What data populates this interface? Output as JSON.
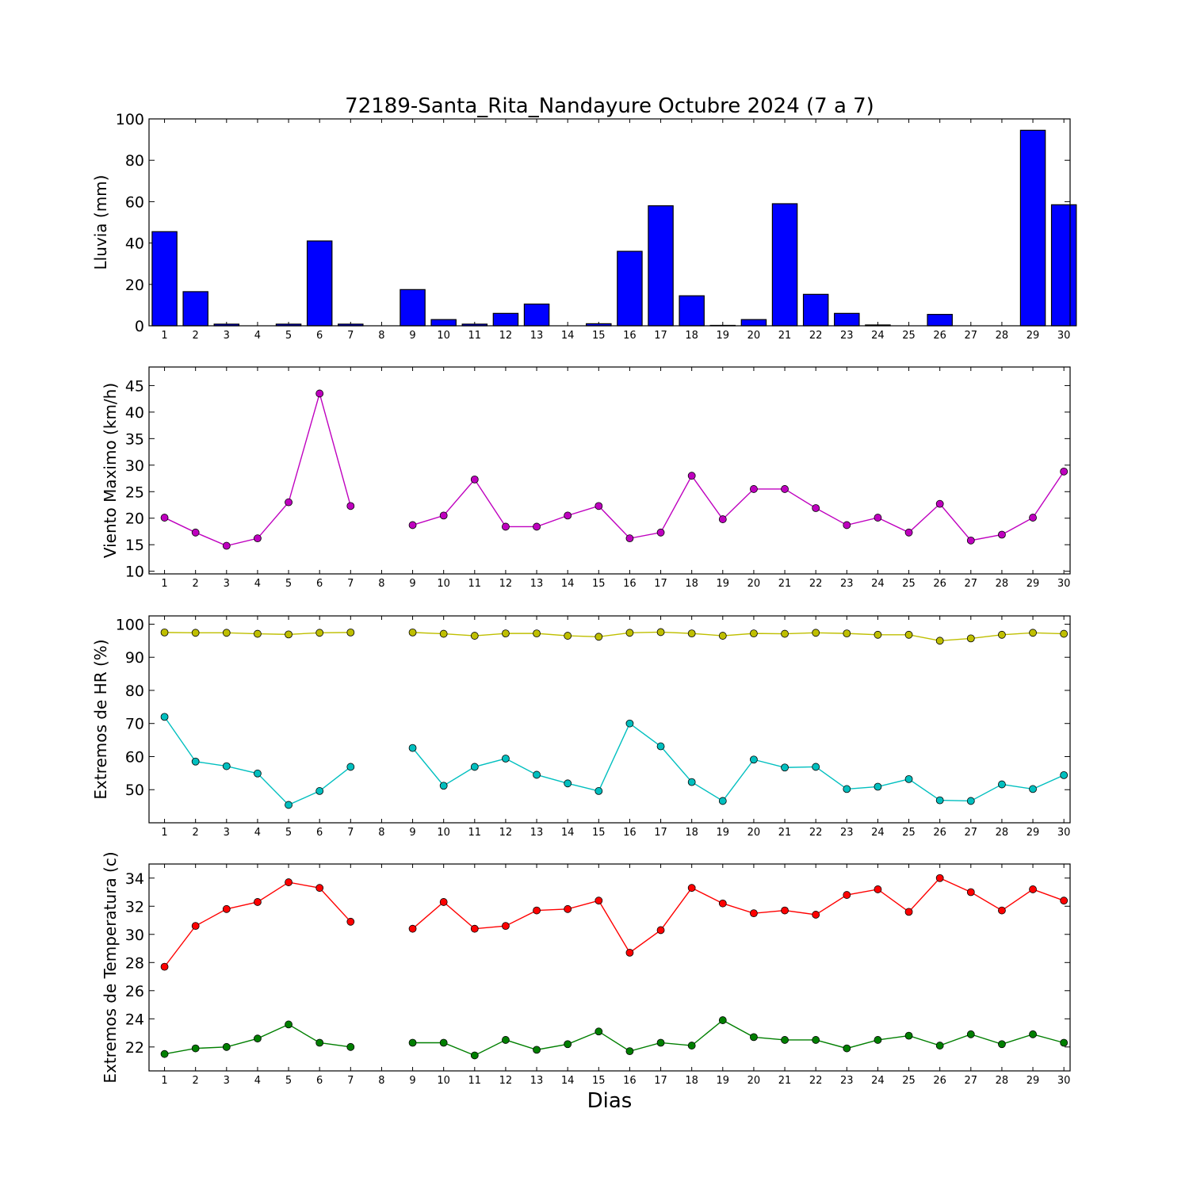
{
  "title": "72189-Santa_Rita_Nandayure Octubre 2024  (7 a 7)",
  "xlabel": "Dias",
  "colors": {
    "rain": "#0000ff",
    "wind": "#bf00bf",
    "hr_max": "#bfbf00",
    "hr_min": "#00bfbf",
    "temp_max": "#ff0000",
    "temp_min": "#007f00"
  },
  "chart_data": [
    {
      "type": "bar",
      "ylabel": "Lluvia (mm)",
      "categories": [
        "1",
        "2",
        "3",
        "4",
        "5",
        "6",
        "7",
        "8",
        "9",
        "10",
        "11",
        "12",
        "13",
        "14",
        "15",
        "16",
        "17",
        "18",
        "19",
        "20",
        "21",
        "22",
        "23",
        "24",
        "25",
        "26",
        "27",
        "28",
        "29",
        "30"
      ],
      "values": [
        45.5,
        16.5,
        0.8,
        0,
        0.8,
        41,
        0.8,
        null,
        17.5,
        3,
        0.8,
        6,
        10.5,
        0,
        1,
        36,
        58,
        14.5,
        0.2,
        3,
        59,
        15.2,
        6,
        0.4,
        0,
        5.5,
        0,
        0,
        94.5,
        58.5
      ],
      "ylim": [
        0,
        100
      ],
      "yticks": [
        0,
        20,
        40,
        60,
        80,
        100
      ]
    },
    {
      "type": "line",
      "ylabel": "Viento Maximo (km/h)",
      "categories": [
        "1",
        "2",
        "3",
        "4",
        "5",
        "6",
        "7",
        "8",
        "9",
        "10",
        "11",
        "12",
        "13",
        "14",
        "15",
        "16",
        "17",
        "18",
        "19",
        "20",
        "21",
        "22",
        "23",
        "24",
        "25",
        "26",
        "27",
        "28",
        "29",
        "30"
      ],
      "series": [
        {
          "values": [
            20.1,
            17.3,
            14.8,
            16.2,
            23.0,
            43.5,
            22.3,
            null,
            18.7,
            20.5,
            27.3,
            18.4,
            18.4,
            20.5,
            22.3,
            16.2,
            17.3,
            28.0,
            19.8,
            25.5,
            25.5,
            21.9,
            18.7,
            20.1,
            17.3,
            22.7,
            15.8,
            16.9,
            20.1,
            28.8
          ]
        }
      ],
      "ylim": [
        9.5,
        48.5
      ],
      "yticks": [
        10,
        15,
        20,
        25,
        30,
        35,
        40,
        45
      ]
    },
    {
      "type": "line",
      "ylabel": "Extremos de HR (%)",
      "categories": [
        "1",
        "2",
        "3",
        "4",
        "5",
        "6",
        "7",
        "8",
        "9",
        "10",
        "11",
        "12",
        "13",
        "14",
        "15",
        "16",
        "17",
        "18",
        "19",
        "20",
        "21",
        "22",
        "23",
        "24",
        "25",
        "26",
        "27",
        "28",
        "29",
        "30"
      ],
      "series": [
        {
          "values": [
            97.5,
            97.4,
            97.4,
            97.1,
            96.9,
            97.4,
            97.5,
            null,
            97.5,
            97.1,
            96.5,
            97.2,
            97.2,
            96.5,
            96.2,
            97.4,
            97.6,
            97.2,
            96.5,
            97.2,
            97.1,
            97.4,
            97.2,
            96.8,
            96.8,
            95.0,
            95.7,
            96.8,
            97.4,
            97.1
          ]
        },
        {
          "values": [
            72.0,
            58.5,
            57.1,
            54.9,
            45.4,
            49.6,
            56.9,
            null,
            62.6,
            51.2,
            56.9,
            59.4,
            54.5,
            51.9,
            49.6,
            70.0,
            63.1,
            52.3,
            46.6,
            59.1,
            56.7,
            56.9,
            50.2,
            50.9,
            53.2,
            46.8,
            46.6,
            51.6,
            50.2,
            54.4
          ]
        }
      ],
      "ylim": [
        40,
        102.5
      ],
      "yticks": [
        50,
        60,
        70,
        80,
        90,
        100
      ]
    },
    {
      "type": "line",
      "ylabel": "Extremos de Temperatura (c)",
      "categories": [
        "1",
        "2",
        "3",
        "4",
        "5",
        "6",
        "7",
        "8",
        "9",
        "10",
        "11",
        "12",
        "13",
        "14",
        "15",
        "16",
        "17",
        "18",
        "19",
        "20",
        "21",
        "22",
        "23",
        "24",
        "25",
        "26",
        "27",
        "28",
        "29",
        "30"
      ],
      "series": [
        {
          "values": [
            27.7,
            30.6,
            31.8,
            32.3,
            33.7,
            33.3,
            30.9,
            null,
            30.4,
            32.3,
            30.4,
            30.6,
            31.7,
            31.8,
            32.4,
            28.7,
            30.3,
            33.3,
            32.2,
            31.5,
            31.7,
            31.4,
            32.8,
            33.2,
            31.6,
            34.0,
            33.0,
            31.7,
            33.2,
            32.4
          ]
        },
        {
          "values": [
            21.5,
            21.9,
            22.0,
            22.6,
            23.6,
            22.3,
            22.0,
            null,
            22.3,
            22.3,
            21.4,
            22.5,
            21.8,
            22.2,
            23.1,
            21.7,
            22.3,
            22.1,
            23.9,
            22.7,
            22.5,
            22.5,
            21.9,
            22.5,
            22.8,
            22.1,
            22.9,
            22.2,
            22.9,
            22.3
          ]
        }
      ],
      "ylim": [
        20.3,
        35
      ],
      "yticks": [
        22,
        24,
        26,
        28,
        30,
        32,
        34
      ]
    }
  ]
}
